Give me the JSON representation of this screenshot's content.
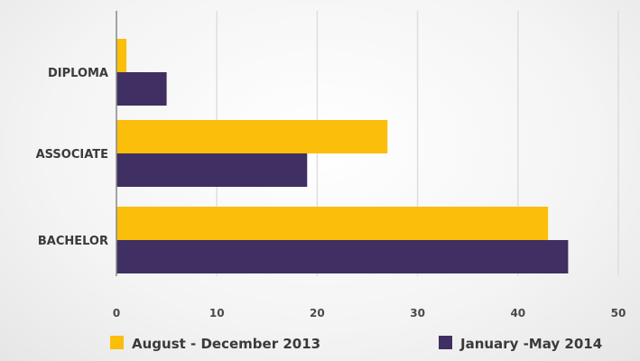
{
  "chart_data": {
    "type": "bar",
    "orientation": "horizontal",
    "categories": [
      "DIPLOMA",
      "ASSOCIATE",
      "BACHELOR"
    ],
    "series": [
      {
        "name": "August - December 2013",
        "color": "#fbbe0a",
        "values": [
          1,
          27,
          43
        ]
      },
      {
        "name": "January -May 2014",
        "color": "#3f2f62",
        "values": [
          5,
          19,
          45
        ]
      }
    ],
    "xlim": [
      0,
      50
    ],
    "xticks": [
      "0",
      "10",
      "20",
      "30",
      "40",
      "50"
    ],
    "grid": true,
    "legend_position": "bottom"
  }
}
